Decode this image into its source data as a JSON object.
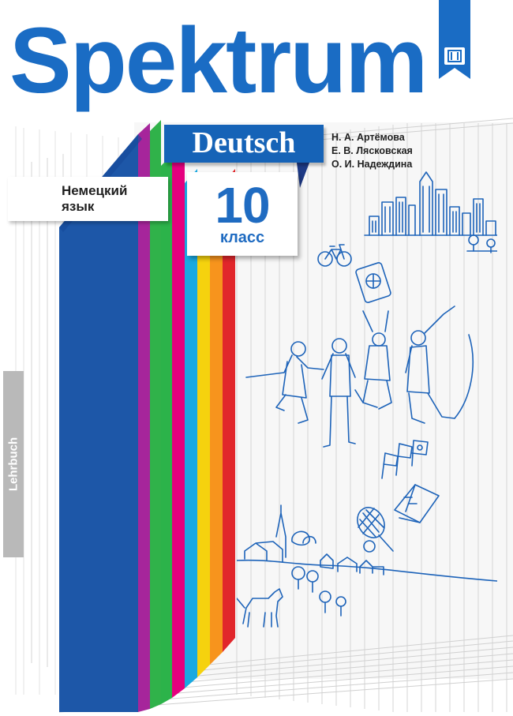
{
  "cover": {
    "title": "Spektrum",
    "series_label": "Deutsch",
    "authors": [
      "Н. А.  Артёмова",
      "Е. В.  Лясковская",
      "О. И.  Надеждина"
    ],
    "subject_line1": "Немецкий",
    "subject_line2": "язык",
    "grade_number": "10",
    "grade_word": "класс",
    "side_label": "Lehrbuch"
  },
  "colors": {
    "brand_blue": "#1a6cc4",
    "stripes": [
      "#e1262b",
      "#f7941d",
      "#f5d20e",
      "#19a9e1",
      "#e5007e",
      "#2cb34a",
      "#30b24a",
      "#a6259b",
      "#1d57a8"
    ],
    "line_art": "#1d63b9"
  },
  "icons": [
    "publisher-logo-icon",
    "city-skyline-icon",
    "bicycle-icon",
    "phone-globe-icon",
    "jumping-people-icon",
    "flags-icon",
    "book-icon",
    "tennis-icon",
    "village-icon",
    "dog-icon"
  ]
}
